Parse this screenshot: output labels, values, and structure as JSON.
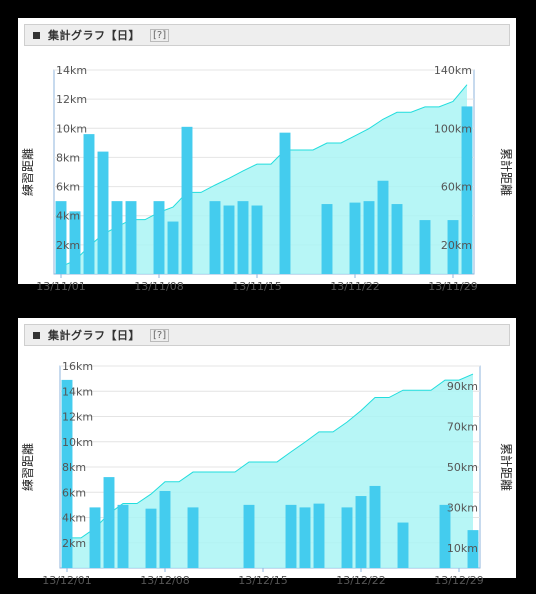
{
  "colors": {
    "bar": "#44ccee",
    "area": "#aaf5f5",
    "area_line": "#22dddd",
    "axis": "#8fb6dd"
  },
  "charts": [
    {
      "header": {
        "title": "集計グラフ【日】",
        "help": "[?]"
      }
    },
    {
      "header": {
        "title": "集計グラフ【日】",
        "help": "[?]"
      }
    }
  ],
  "chart_data": [
    {
      "type": "bar",
      "ylabel": "練習距離",
      "y2label": "累計距離",
      "ylim": [
        0,
        14
      ],
      "y2lim": [
        0,
        140
      ],
      "yticks": [
        "2km",
        "4km",
        "6km",
        "8km",
        "10km",
        "12km",
        "14km"
      ],
      "y2ticks": [
        "20km",
        "60km",
        "100km",
        "140km"
      ],
      "xticks": [
        "13/11/01",
        "13/11/08",
        "13/11/15",
        "13/11/22",
        "13/11/29"
      ],
      "series": [
        {
          "name": "練習距離",
          "type": "bar",
          "values": [
            5.0,
            4.3,
            9.6,
            8.4,
            5.0,
            5.0,
            0,
            5.0,
            3.6,
            10.1,
            0,
            5.0,
            4.7,
            5.0,
            4.7,
            0,
            9.7,
            0,
            0,
            4.8,
            0,
            4.9,
            5.0,
            6.4,
            4.8,
            0,
            3.7,
            0,
            3.7,
            11.5
          ]
        },
        {
          "name": "累計距離",
          "type": "area",
          "values": [
            5.0,
            9.3,
            18.9,
            27.3,
            32.3,
            37.3,
            37.3,
            42.3,
            45.9,
            56.0,
            56.0,
            61.0,
            65.7,
            70.7,
            75.4,
            75.4,
            85.1,
            85.1,
            85.1,
            89.9,
            89.9,
            94.8,
            99.8,
            106.2,
            111.0,
            111.0,
            114.7,
            114.7,
            118.4,
            129.9
          ]
        }
      ]
    },
    {
      "type": "bar",
      "ylabel": "練習距離",
      "y2label": "累計距離",
      "ylim": [
        0,
        16
      ],
      "y2lim": [
        0,
        100
      ],
      "yticks": [
        "2km",
        "4km",
        "6km",
        "8km",
        "10km",
        "12km",
        "14km",
        "16km"
      ],
      "y2ticks": [
        "10km",
        "30km",
        "50km",
        "70km",
        "90km"
      ],
      "xticks": [
        "13/12/01",
        "13/12/08",
        "13/12/15",
        "13/12/22",
        "13/12/29"
      ],
      "series": [
        {
          "name": "練習距離",
          "type": "bar",
          "values": [
            14.9,
            0,
            4.8,
            7.2,
            5.0,
            0,
            4.7,
            6.1,
            0,
            4.8,
            0,
            0,
            0,
            5.0,
            0,
            0,
            5.0,
            4.8,
            5.1,
            0,
            4.8,
            5.7,
            6.5,
            0,
            3.6,
            0,
            0,
            5.0,
            0,
            3.0
          ]
        },
        {
          "name": "累計距離",
          "type": "area",
          "values": [
            14.9,
            14.9,
            19.7,
            26.9,
            31.9,
            31.9,
            36.6,
            42.7,
            42.7,
            47.5,
            47.5,
            47.5,
            47.5,
            52.5,
            52.5,
            52.5,
            57.5,
            62.3,
            67.4,
            67.4,
            72.2,
            77.9,
            84.4,
            84.4,
            88.0,
            88.0,
            88.0,
            93.0,
            93.0,
            96.0
          ]
        }
      ]
    }
  ]
}
